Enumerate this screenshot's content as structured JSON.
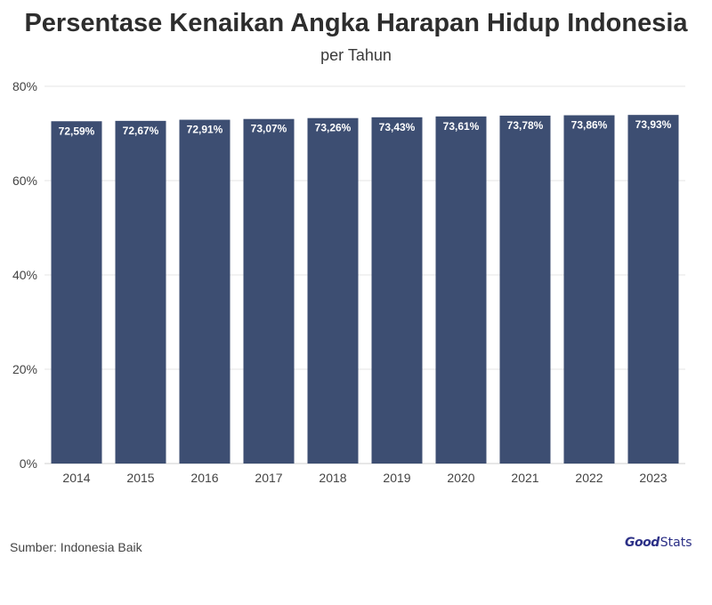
{
  "title": "Persentase Kenaikan Angka Harapan Hidup Indonesia",
  "subtitle": "per Tahun",
  "source": "Sumber: Indonesia Baik",
  "logo": {
    "part1": "Good",
    "part2": "Stats"
  },
  "colors": {
    "bar": "#3d4e72",
    "label": "#ffffff",
    "grid": "#e6e6e6",
    "axis_text": "#444444"
  },
  "chart_data": {
    "type": "bar",
    "title": "Persentase Kenaikan Angka Harapan Hidup Indonesia",
    "subtitle": "per Tahun",
    "categories": [
      "2014",
      "2015",
      "2016",
      "2017",
      "2018",
      "2019",
      "2020",
      "2021",
      "2022",
      "2023"
    ],
    "values": [
      72.59,
      72.67,
      72.91,
      73.07,
      73.26,
      73.43,
      73.61,
      73.78,
      73.86,
      73.93
    ],
    "value_labels": [
      "72,59%",
      "72,67%",
      "72,91%",
      "73,07%",
      "73,26%",
      "73,43%",
      "73,61%",
      "73,78%",
      "73,86%",
      "73,93%"
    ],
    "yticks": [
      0,
      20,
      40,
      60,
      80
    ],
    "ytick_labels": [
      "0%",
      "20%",
      "40%",
      "60%",
      "80%"
    ],
    "ylim": [
      0,
      80
    ],
    "xlabel": "",
    "ylabel": "",
    "grid": true,
    "legend": "none"
  }
}
